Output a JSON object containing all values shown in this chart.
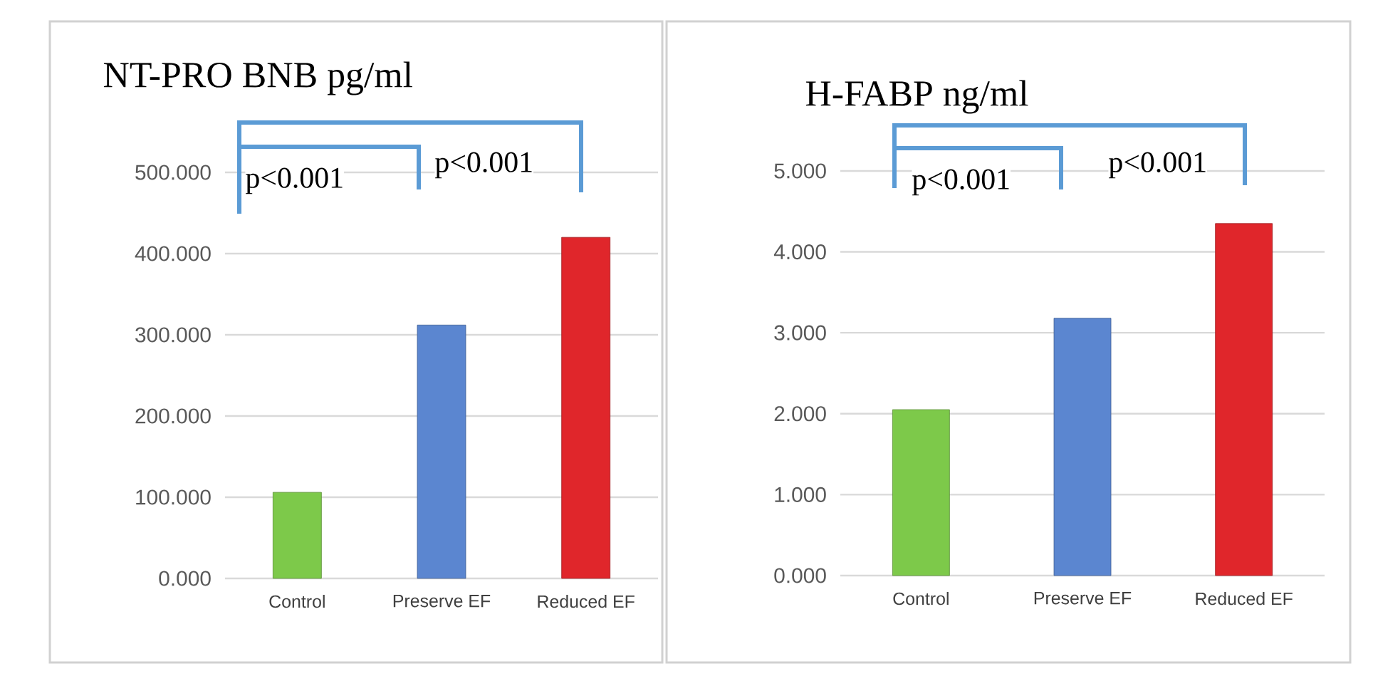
{
  "chart_data": [
    {
      "type": "bar",
      "title": "NT-PRO BNB pg/ml",
      "categories": [
        "Control",
        "Preserve EF",
        "Reduced EF"
      ],
      "values": [
        106,
        312,
        420
      ],
      "colors": [
        "#7dc94a",
        "#5b86d0",
        "#e0262b"
      ],
      "ylim": [
        0,
        500
      ],
      "yticks": [
        {
          "value": 0,
          "label": "0.000"
        },
        {
          "value": 100,
          "label": "100.000"
        },
        {
          "value": 200,
          "label": "200.000"
        },
        {
          "value": 300,
          "label": "300.000"
        },
        {
          "value": 400,
          "label": "400.000"
        },
        {
          "value": 500,
          "label": "500.000"
        }
      ],
      "grid": "y",
      "annotations": [
        "p<0.001",
        "p<0.001"
      ]
    },
    {
      "type": "bar",
      "title": "H-FABP ng/ml",
      "categories": [
        "Control",
        "Preserve EF",
        "Reduced EF"
      ],
      "values": [
        2.05,
        3.18,
        4.35
      ],
      "colors": [
        "#7dc94a",
        "#5b86d0",
        "#e0262b"
      ],
      "ylim": [
        0,
        5
      ],
      "yticks": [
        {
          "value": 0,
          "label": "0.000"
        },
        {
          "value": 1,
          "label": "1.000"
        },
        {
          "value": 2,
          "label": "2.000"
        },
        {
          "value": 3,
          "label": "3.000"
        },
        {
          "value": 4,
          "label": "4.000"
        },
        {
          "value": 5,
          "label": "5.000"
        }
      ],
      "grid": "y",
      "annotations": [
        "p<0.001",
        "p<0.001"
      ]
    }
  ]
}
